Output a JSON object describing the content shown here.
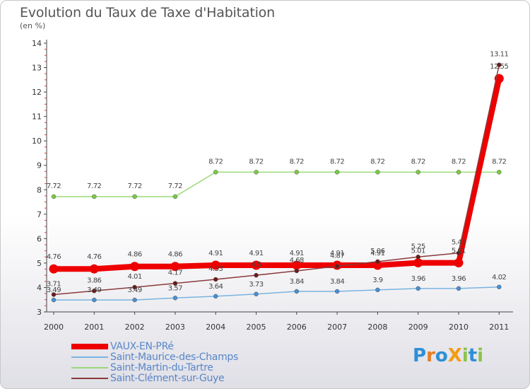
{
  "title": "Evolution du Taux de Taxe d'Habitation",
  "subtitle": "(en %)",
  "logo": {
    "text": "ProXiti",
    "letters": [
      "P",
      "r",
      "o",
      "X",
      "i",
      "t",
      "i"
    ],
    "colors": [
      "#2e8fd6",
      "#e67e22",
      "#2e8fd6",
      "#f39c12",
      "#8bc34a",
      "#2e8fd6",
      "#8bc34a"
    ]
  },
  "chart_data": {
    "type": "line",
    "categories": [
      "2000",
      "2001",
      "2002",
      "2003",
      "2004",
      "2005",
      "2006",
      "2007",
      "2008",
      "2009",
      "2010",
      "2011"
    ],
    "ylim": [
      3,
      14
    ],
    "yticks": [
      "3",
      "4",
      "5",
      "6",
      "7",
      "8",
      "9",
      "10",
      "11",
      "12",
      "13",
      "14"
    ],
    "grid": false,
    "series": [
      {
        "name": "VAUX-EN-PRé",
        "color": "#ee0000",
        "markerColor": "#ee0000",
        "width": 8,
        "values": [
          4.76,
          4.76,
          4.86,
          4.86,
          4.91,
          4.91,
          4.91,
          4.91,
          4.91,
          5.01,
          5.01,
          12.55
        ],
        "labels": [
          "4.76",
          "4.76",
          "4.86",
          "4.86",
          "4.91",
          "4.91",
          "4.91",
          "4.91",
          "4.91",
          "5.01",
          "5.01",
          "12.55"
        ]
      },
      {
        "name": "Saint-Maurice-des-Champs",
        "color": "#7ab3e0",
        "markerColor": "#4a8fd0",
        "width": 1.5,
        "values": [
          3.49,
          3.49,
          3.49,
          3.57,
          3.64,
          3.73,
          3.84,
          3.84,
          3.9,
          3.96,
          3.96,
          4.02
        ],
        "labels": [
          "3.49",
          "3.49",
          "3.49",
          "3.57",
          "3.64",
          "3.73",
          "3.84",
          "3.84",
          "3.9",
          "3.96",
          "3.96",
          "4.02"
        ]
      },
      {
        "name": "Saint-Martin-du-Tartre",
        "color": "#9ad97a",
        "markerColor": "#7ac943",
        "width": 1.5,
        "values": [
          7.72,
          7.72,
          7.72,
          7.72,
          8.72,
          8.72,
          8.72,
          8.72,
          8.72,
          8.72,
          8.72,
          8.72
        ],
        "labels": [
          "7.72",
          "7.72",
          "7.72",
          "7.72",
          "8.72",
          "8.72",
          "8.72",
          "8.72",
          "8.72",
          "8.72",
          "8.72",
          "8.72"
        ]
      },
      {
        "name": "Saint-Clément-sur-Guye",
        "color": "#8b3a3a",
        "markerColor": "#6b1a1a",
        "width": 1.5,
        "values": [
          3.71,
          3.86,
          4.01,
          4.17,
          4.33,
          4.5,
          4.68,
          4.87,
          5.06,
          5.25,
          5.41,
          13.11
        ],
        "labels": [
          "3.71",
          "3.86",
          "4.01",
          "4.17",
          "4.33",
          "4.5",
          "4.68",
          "4.87",
          "5.06",
          "5.25",
          "5.41",
          "13.11"
        ]
      }
    ]
  },
  "legend": [
    {
      "label": "VAUX-EN-PRé",
      "color": "#ee0000"
    },
    {
      "label": "Saint-Maurice-des-Champs",
      "color": "#7ab3e0"
    },
    {
      "label": "Saint-Martin-du-Tartre",
      "color": "#9ad97a"
    },
    {
      "label": "Saint-Clément-sur-Guye",
      "color": "#8b3a3a"
    }
  ]
}
